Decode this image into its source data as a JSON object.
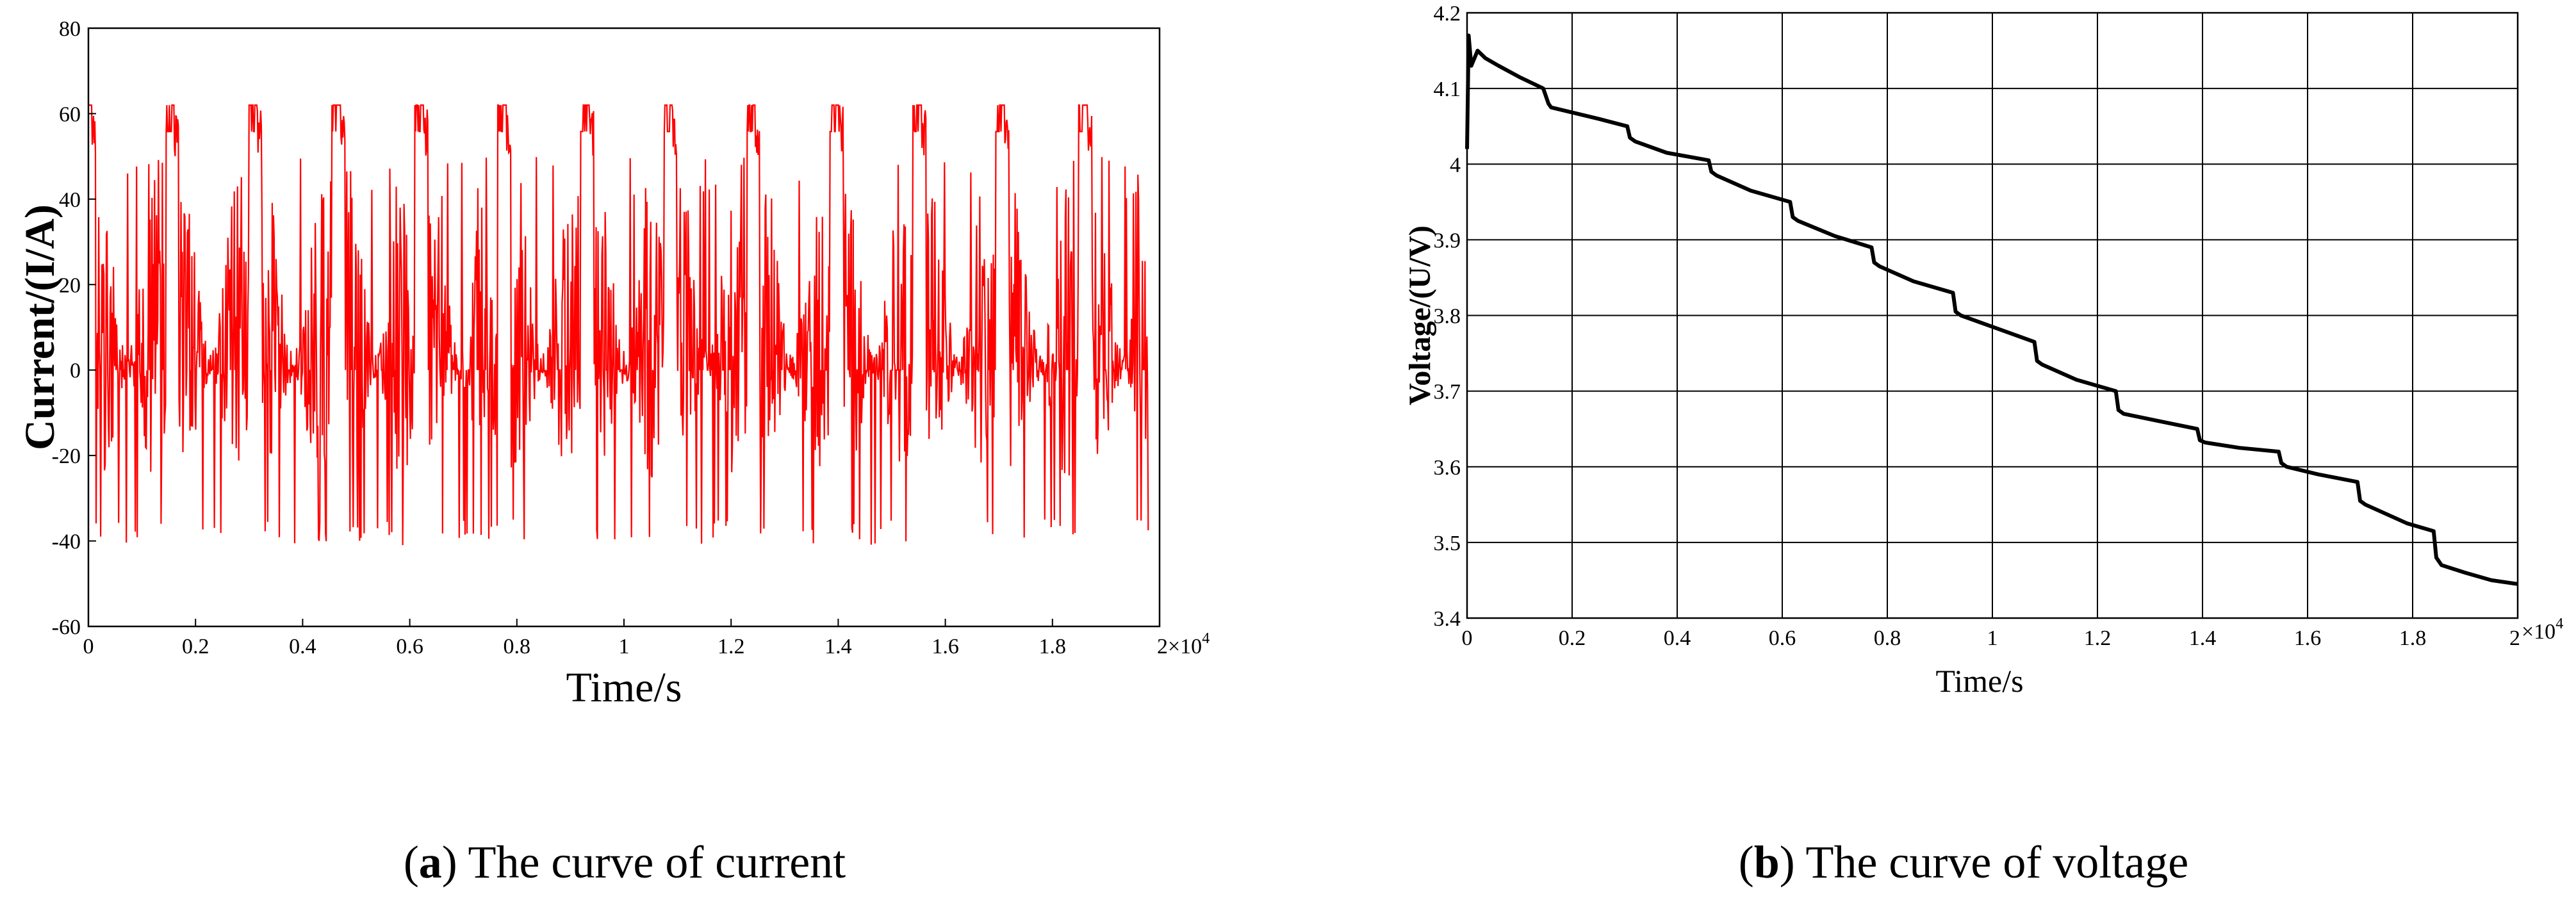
{
  "chart_data": [
    {
      "type": "line",
      "panel_letter": "a",
      "caption": "The curve of current",
      "xlabel": "Time/s",
      "ylabel": "Current/(I/A)",
      "x_multiplier": "2×10",
      "x_exponent": "4",
      "xlim": [
        0,
        2.0
      ],
      "ylim": [
        -60,
        80
      ],
      "x_ticks": [
        0,
        0.2,
        0.4,
        0.6,
        0.8,
        1.0,
        1.2,
        1.4,
        1.6,
        1.8
      ],
      "x_tick_labels": [
        "0",
        "0.2",
        "0.4",
        "0.6",
        "0.8",
        "1",
        "1.2",
        "1.4",
        "1.6",
        "1.8"
      ],
      "y_ticks": [
        -60,
        -40,
        -20,
        0,
        20,
        40,
        60,
        80
      ],
      "y_tick_labels": [
        "-60",
        "-40",
        "-20",
        "0",
        "20",
        "40",
        "60",
        "80"
      ],
      "grid": false,
      "line_color": "#ff0000",
      "series": [
        {
          "profile": "repeating drive cycle, period about 0.155 (x10^4 s), peaks at 62 A",
          "cycle_period": 0.155,
          "peak_value": 62,
          "min_value": -41,
          "x_end": 1.98,
          "cycle_start_x": [
            0.0,
            0.155,
            0.31,
            0.465,
            0.62,
            0.775,
            0.93,
            1.085,
            1.24,
            1.395,
            1.55,
            1.705,
            1.86
          ]
        }
      ]
    },
    {
      "type": "line",
      "panel_letter": "b",
      "caption": "The curve of voltage",
      "xlabel": "Time/s",
      "ylabel": "Voltage/(U/V)",
      "x_multiplier": "×10",
      "x_exponent": "4",
      "x_end_label": "2",
      "xlim": [
        0,
        2.0
      ],
      "ylim": [
        3.4,
        4.2
      ],
      "x_ticks": [
        0,
        0.2,
        0.4,
        0.6,
        0.8,
        1.0,
        1.2,
        1.4,
        1.6,
        1.8
      ],
      "x_tick_labels": [
        "0",
        "0.2",
        "0.4",
        "0.6",
        "0.8",
        "1",
        "1.2",
        "1.4",
        "1.6",
        "1.8"
      ],
      "y_ticks": [
        3.4,
        3.5,
        3.6,
        3.7,
        3.8,
        3.9,
        4.0,
        4.1,
        4.2
      ],
      "y_tick_labels": [
        "3.4",
        "3.5",
        "3.6",
        "3.7",
        "3.8",
        "3.9",
        "4",
        "4.1",
        "4.2"
      ],
      "grid": true,
      "line_color": "#000000",
      "series": [
        {
          "x": [
            0,
            0.003,
            0.008,
            0.02,
            0.035,
            0.06,
            0.1,
            0.145,
            0.155,
            0.16,
            0.25,
            0.305,
            0.31,
            0.32,
            0.38,
            0.46,
            0.465,
            0.475,
            0.54,
            0.615,
            0.62,
            0.63,
            0.7,
            0.77,
            0.775,
            0.785,
            0.85,
            0.925,
            0.93,
            0.94,
            1.0,
            1.08,
            1.085,
            1.095,
            1.16,
            1.235,
            1.24,
            1.25,
            1.32,
            1.39,
            1.395,
            1.405,
            1.47,
            1.545,
            1.55,
            1.56,
            1.62,
            1.695,
            1.7,
            1.71,
            1.79,
            1.84,
            1.845,
            1.855,
            1.9,
            1.95,
            2.0
          ],
          "y": [
            4.02,
            4.17,
            4.13,
            4.15,
            4.14,
            4.13,
            4.115,
            4.1,
            4.08,
            4.075,
            4.06,
            4.05,
            4.035,
            4.03,
            4.015,
            4.005,
            3.99,
            3.985,
            3.965,
            3.95,
            3.93,
            3.925,
            3.905,
            3.89,
            3.87,
            3.865,
            3.845,
            3.83,
            3.805,
            3.8,
            3.785,
            3.765,
            3.74,
            3.735,
            3.715,
            3.7,
            3.675,
            3.67,
            3.66,
            3.65,
            3.635,
            3.632,
            3.625,
            3.62,
            3.605,
            3.6,
            3.59,
            3.58,
            3.555,
            3.55,
            3.525,
            3.515,
            3.48,
            3.47,
            3.46,
            3.45,
            3.445
          ]
        }
      ]
    }
  ]
}
